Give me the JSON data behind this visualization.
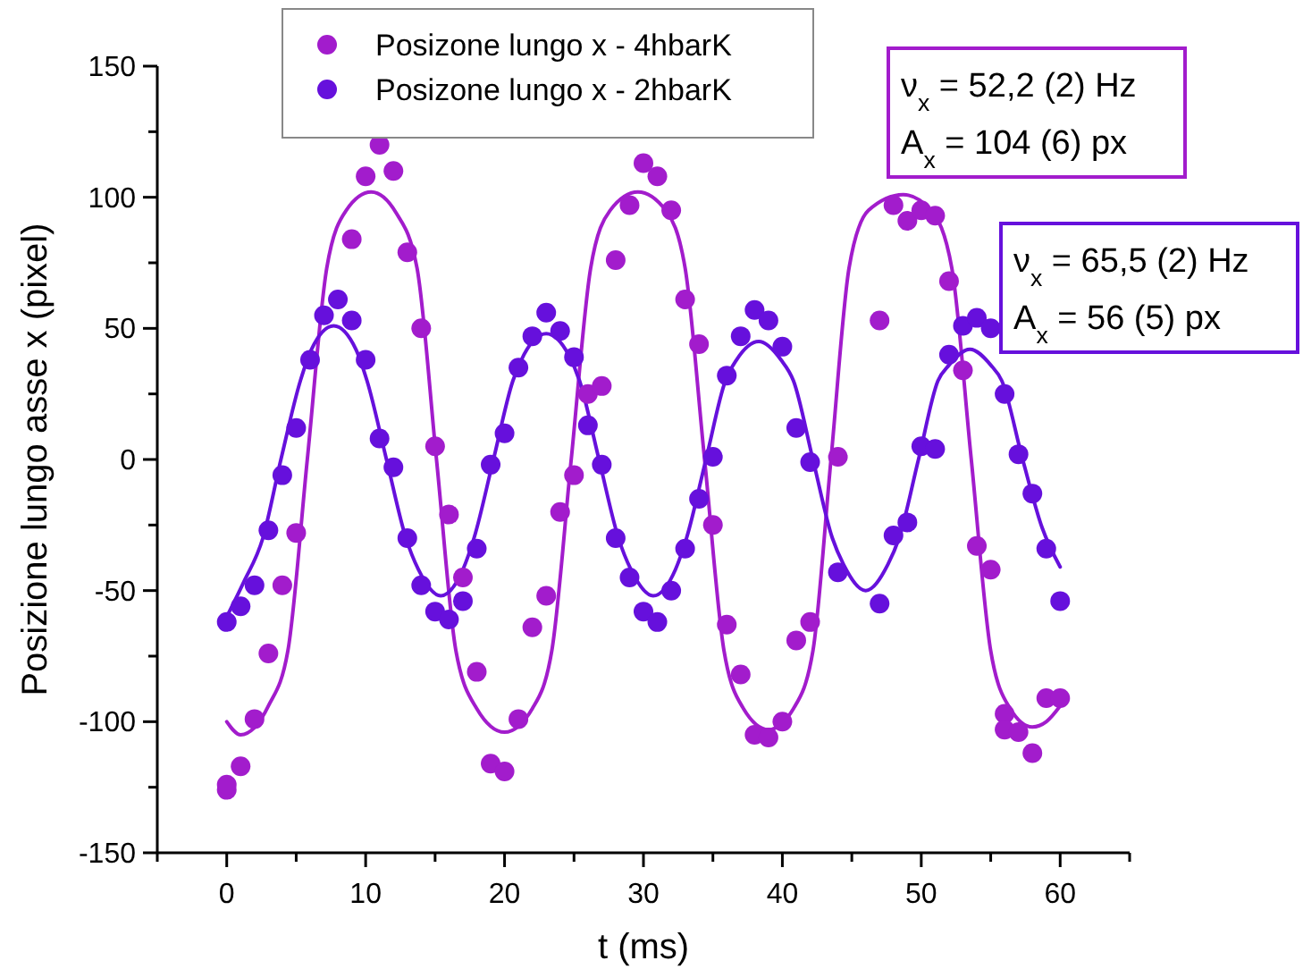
{
  "chart_data": {
    "type": "scatter",
    "xlabel": "t (ms)",
    "ylabel": "Posizione lungo asse x (pixel)",
    "xlim": [
      -5,
      65
    ],
    "xticks": [
      {
        "value": -5,
        "label": null
      },
      0,
      {
        "value": 5,
        "label": null
      },
      10,
      {
        "value": 15,
        "label": null
      },
      20,
      {
        "value": 25,
        "label": null
      },
      30,
      {
        "value": 35,
        "label": null
      },
      40,
      {
        "value": 45,
        "label": null
      },
      50,
      {
        "value": 55,
        "label": null
      },
      60,
      {
        "value": 65,
        "label": null
      }
    ],
    "ylim": [
      -150,
      150
    ],
    "yticks": [
      -150,
      {
        "value": -125,
        "label": null
      },
      -100,
      {
        "value": -75,
        "label": null
      },
      -50,
      {
        "value": -25,
        "label": null
      },
      0,
      {
        "value": 25,
        "label": null
      },
      50,
      {
        "value": 75,
        "label": null
      },
      100,
      {
        "value": 125,
        "label": null
      },
      150
    ],
    "legend": "top left",
    "line_style": "solid",
    "annotations": [
      "ν$_{x}$ = 52,2 (2) Hz",
      "A$_{x}$ = 104 (6) px",
      "ν$_{x}$ = 65,5 (2) Hz",
      "A$_{x}$ = 56 (5) px"
    ],
    "series": [
      {
        "name": "Posizone lungo x - 4hbarK",
        "color": "#a21ccc",
        "marker": "circle",
        "x": [
          0,
          0,
          1,
          2,
          3,
          4,
          5,
          9,
          10,
          11,
          12,
          13,
          14,
          15,
          16,
          17,
          18,
          19,
          20,
          21,
          22,
          23,
          24,
          25,
          26,
          27,
          28,
          29,
          30,
          31,
          32,
          33,
          34,
          35,
          36,
          37,
          38,
          39,
          40,
          41,
          42,
          44,
          47,
          48,
          49,
          50,
          51,
          52,
          53,
          54,
          55,
          56,
          56,
          57,
          58,
          59,
          60
        ],
        "values": [
          -126,
          -124,
          -117,
          -99,
          -74,
          -48,
          -28,
          84,
          108,
          120,
          110,
          79,
          50,
          5,
          -21,
          -45,
          -81,
          -116,
          -119,
          -99,
          -64,
          -52,
          -20,
          -6,
          25,
          28,
          76,
          97,
          113,
          108,
          95,
          61,
          44,
          -25,
          -63,
          -82,
          -105,
          -106,
          -100,
          -69,
          -62,
          1,
          53,
          97,
          91,
          95,
          93,
          68,
          34,
          -33,
          -42,
          -97,
          -103,
          -104,
          -112,
          -91,
          -91
        ]
      },
      {
        "name": "Posizone lungo x - 2hbarK",
        "color": "#6610dc",
        "marker": "circle",
        "x": [
          0,
          1,
          2,
          3,
          4,
          5,
          6,
          7,
          8,
          9,
          10,
          11,
          12,
          13,
          14,
          15,
          16,
          17,
          18,
          19,
          20,
          21,
          22,
          23,
          24,
          25,
          26,
          27,
          28,
          29,
          30,
          31,
          32,
          33,
          34,
          35,
          36,
          37,
          38,
          39,
          40,
          41,
          42,
          44,
          47,
          48,
          49,
          50,
          51,
          52,
          53,
          54,
          55,
          56,
          57,
          58,
          59,
          60
        ],
        "values": [
          -62,
          -56,
          -48,
          -27,
          -6,
          12,
          38,
          55,
          61,
          53,
          38,
          8,
          -3,
          -30,
          -48,
          -58,
          -61,
          -54,
          -34,
          -2,
          10,
          35,
          47,
          56,
          49,
          39,
          13,
          -2,
          -30,
          -45,
          -58,
          -62,
          -50,
          -34,
          -15,
          1,
          32,
          47,
          57,
          53,
          43,
          12,
          -1,
          -43,
          -55,
          -29,
          -24,
          5,
          4,
          40,
          51,
          54,
          50,
          25,
          2,
          -13,
          -34,
          -54
        ]
      },
      {
        "color": "#a21ccc",
        "type": "line",
        "marker": "none",
        "x": [
          0,
          1,
          3,
          4.4,
          5.8,
          7.2,
          8.6,
          10.4,
          12.2,
          13.7,
          15.1,
          16.5,
          18,
          20,
          22,
          23.4,
          24.8,
          26.2,
          27.6,
          29.6,
          31.6,
          33,
          34.4,
          35.8,
          37.2,
          39,
          40.8,
          42.2,
          43.5,
          44.8,
          46.2,
          48.7,
          50.7,
          52.2,
          53.6,
          55,
          56.4,
          58,
          59,
          60
        ],
        "values": [
          -100,
          -105,
          -94,
          -73,
          0,
          73,
          95,
          102,
          94,
          73,
          0,
          -73,
          -95,
          -104,
          -95,
          -73,
          0,
          73,
          95,
          102,
          95,
          73,
          0,
          -73,
          -95,
          -103,
          -95,
          -73,
          0,
          73,
          95,
          101,
          95,
          73,
          0,
          -73,
          -95,
          -102,
          -100,
          -94
        ]
      },
      {
        "color": "#6610dc",
        "type": "line",
        "marker": "none",
        "x": [
          0,
          1.2,
          2.6,
          3.9,
          5.3,
          6.1,
          7.7,
          9.3,
          10.1,
          11.5,
          12.9,
          13.8,
          15.4,
          17,
          17.8,
          19.2,
          20.6,
          21.4,
          23,
          24.6,
          25.4,
          26.8,
          28.2,
          29.1,
          30.7,
          32.3,
          33.1,
          34.5,
          35.9,
          36.7,
          38.3,
          39.9,
          40.8,
          42.2,
          43.6,
          44.4,
          46,
          47.6,
          48.4,
          49.8,
          51.2,
          52,
          53.5,
          55,
          55.8,
          57.3,
          58.7,
          60
        ],
        "values": [
          -60,
          -47,
          -30,
          0,
          30,
          42,
          51,
          42,
          30,
          0,
          -30,
          -42,
          -52,
          -42,
          -30,
          0,
          30,
          40,
          48,
          40,
          30,
          0,
          -30,
          -42,
          -52,
          -42,
          -30,
          0,
          30,
          38,
          45,
          38,
          30,
          0,
          -30,
          -40,
          -50,
          -40,
          -30,
          0,
          30,
          36,
          42,
          36,
          30,
          0,
          -26,
          -41
        ]
      }
    ]
  }
}
